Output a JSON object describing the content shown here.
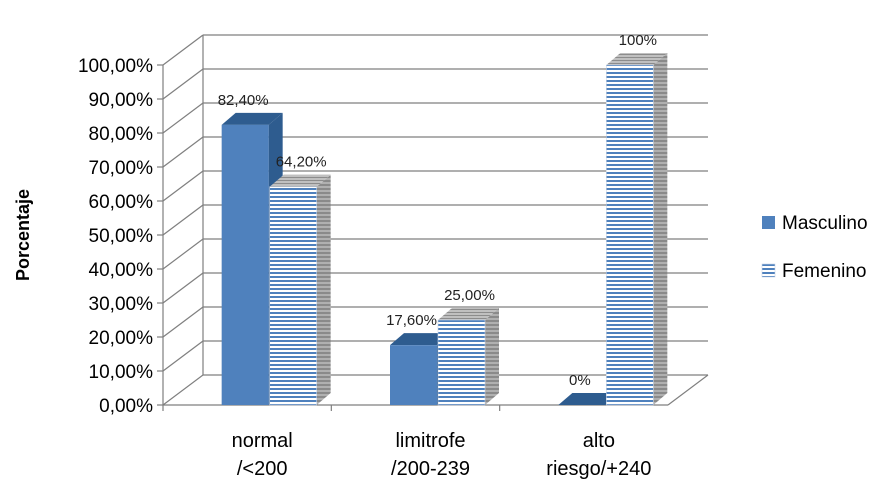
{
  "chart_data": {
    "type": "bar",
    "ylabel": "Porcentaje",
    "ylim": [
      0,
      100
    ],
    "y_ticks": [
      "0,00%",
      "10,00%",
      "20,00%",
      "30,00%",
      "40,00%",
      "50,00%",
      "60,00%",
      "70,00%",
      "80,00%",
      "90,00%",
      "100,00%"
    ],
    "categories": [
      [
        "normal",
        "/<200"
      ],
      [
        "limitrofe",
        "/200-239"
      ],
      [
        "alto",
        "riesgo/+240"
      ]
    ],
    "series": [
      {
        "name": "Masculino",
        "values": [
          82.4,
          17.6,
          0
        ],
        "labels": [
          "82,40%",
          "17,60%",
          "0%"
        ],
        "color": "#4F81BD",
        "style": "solid"
      },
      {
        "name": "Femenino",
        "values": [
          64.2,
          25.0,
          100
        ],
        "labels": [
          "64,20%",
          "25,00%",
          "100%"
        ],
        "color": "#4F81BD",
        "style": "horizontal-stripes"
      }
    ],
    "grid": true,
    "legend_position": "right",
    "style": "3d-clustered-column"
  }
}
